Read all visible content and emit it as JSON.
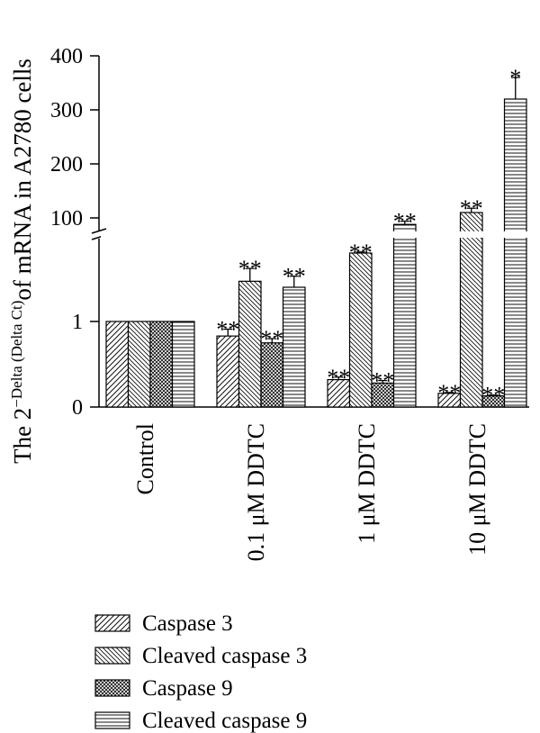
{
  "chart_data": {
    "type": "bar",
    "ylabel": {
      "prefix": "The 2",
      "superscript": "−Delta (Delta Ct)",
      "suffix": "of mRNA in A2780 cells"
    },
    "yticks_lower": [
      "0",
      "1"
    ],
    "yticks_upper": [
      "100",
      "200",
      "300",
      "400"
    ],
    "categories": [
      "Control",
      "0.1 μM DDTC",
      "1 μM DDTC",
      "10 μM DDTC"
    ],
    "series": [
      {
        "name": "Caspase 3",
        "pattern": "fwd-diag",
        "values": [
          1.0,
          0.83,
          0.32,
          0.16
        ],
        "errors": [
          0.0,
          0.08,
          0.03,
          0.01
        ],
        "annotations": [
          "",
          "**",
          "**",
          "**"
        ]
      },
      {
        "name": "Cleaved caspase 3",
        "pattern": "back-diag",
        "values": [
          1.0,
          1.47,
          35,
          110
        ],
        "errors": [
          0.0,
          0.15,
          2,
          8
        ],
        "annotations": [
          "",
          "**",
          "**",
          "**"
        ]
      },
      {
        "name": "Caspase 9",
        "pattern": "crosshatch",
        "values": [
          1.0,
          0.75,
          0.28,
          0.13
        ],
        "errors": [
          0.0,
          0.05,
          0.03,
          0.01
        ],
        "annotations": [
          "",
          "**",
          "**",
          "**"
        ]
      },
      {
        "name": "Cleaved caspase 9",
        "pattern": "horizontal",
        "values": [
          1.0,
          1.4,
          88,
          320
        ],
        "errors": [
          0.0,
          0.13,
          6,
          40
        ],
        "annotations": [
          "",
          "**",
          "**",
          "*"
        ]
      }
    ],
    "ylim_lower": [
      0,
      2
    ],
    "ylim_upper": [
      0,
      400
    ],
    "axis_break": true,
    "legend_position": "bottom"
  }
}
